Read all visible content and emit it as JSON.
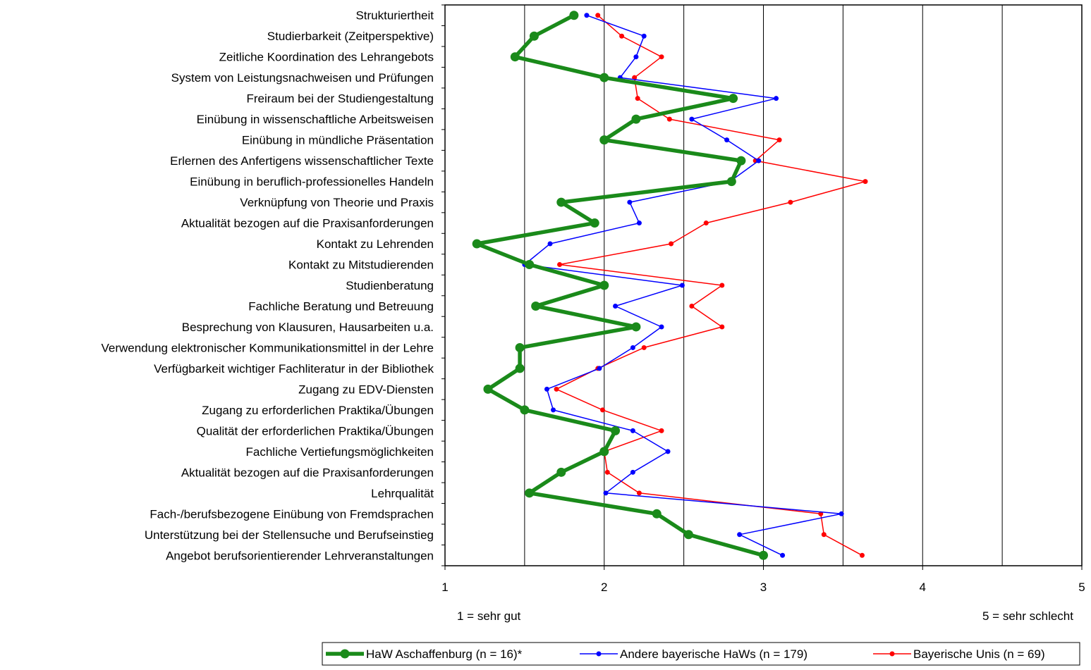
{
  "chart_data": {
    "type": "line",
    "orientation": "horizontal",
    "categories": [
      "Strukturiertheit",
      "Studierbarkeit (Zeitperspektive)",
      "Zeitliche Koordination des Lehrangebots",
      "System von Leistungsnachweisen und Prüfungen",
      "Freiraum bei der Studiengestaltung",
      "Einübung in wissenschaftliche Arbeitsweisen",
      "Einübung in mündliche Präsentation",
      "Erlernen des Anfertigens wissenschaftlicher Texte",
      "Einübung in beruflich-professionelles Handeln",
      "Verknüpfung von Theorie und Praxis",
      "Aktualität bezogen auf die Praxisanforderungen",
      "Kontakt zu Lehrenden",
      "Kontakt zu Mitstudierenden",
      "Studienberatung",
      "Fachliche Beratung und Betreuung",
      "Besprechung von Klausuren, Hausarbeiten u.a.",
      "Verwendung elektronischer Kommunikationsmittel in der Lehre",
      "Verfügbarkeit wichtiger Fachliteratur in der Bibliothek",
      "Zugang zu EDV-Diensten",
      "Zugang zu erforderlichen Praktika/Übungen",
      "Qualität der erforderlichen Praktika/Übungen",
      "Fachliche Vertiefungsmöglichkeiten",
      "Aktualität bezogen auf die Praxisanforderungen",
      "Lehrqualität",
      "Fach-/berufsbezogene Einübung von Fremdsprachen",
      "Unterstützung bei der Stellensuche und Berufseinstieg",
      "Angebot berufsorientierender Lehrveranstaltungen"
    ],
    "series": [
      {
        "name": "HaW Aschaffenburg (n = 16)*",
        "color": "#1a8a1a",
        "values": [
          1.81,
          1.56,
          1.44,
          2.0,
          2.81,
          2.2,
          2.0,
          2.86,
          2.8,
          1.73,
          1.94,
          1.2,
          1.53,
          2.0,
          1.57,
          2.2,
          1.47,
          1.47,
          1.27,
          1.5,
          2.07,
          2.0,
          1.73,
          1.53,
          2.33,
          2.53,
          3.0
        ]
      },
      {
        "name": "Andere bayerische HaWs (n = 179)",
        "color": "#0000ff",
        "values": [
          1.89,
          2.25,
          2.2,
          2.1,
          3.08,
          2.55,
          2.77,
          2.97,
          2.79,
          2.16,
          2.22,
          1.66,
          1.5,
          2.49,
          2.07,
          2.36,
          2.18,
          1.97,
          1.64,
          1.68,
          2.18,
          2.4,
          2.18,
          2.01,
          3.49,
          2.85,
          3.12
        ]
      },
      {
        "name": "Bayerische Unis (n = 69)",
        "color": "#ff0000",
        "values": [
          1.96,
          2.11,
          2.36,
          2.19,
          2.21,
          2.41,
          3.1,
          2.95,
          3.64,
          3.17,
          2.64,
          2.42,
          1.72,
          2.74,
          2.55,
          2.74,
          2.25,
          1.96,
          1.7,
          1.99,
          2.36,
          2.0,
          2.02,
          2.22,
          3.36,
          3.38,
          3.62
        ]
      }
    ],
    "xlim": [
      1,
      5
    ],
    "xticks": [
      "1",
      "2",
      "3",
      "4",
      "5"
    ],
    "grid": "vertical",
    "scale_low_label": "1 = sehr gut",
    "scale_high_label": "5 = sehr schlecht",
    "legend_position": "bottom-right"
  }
}
